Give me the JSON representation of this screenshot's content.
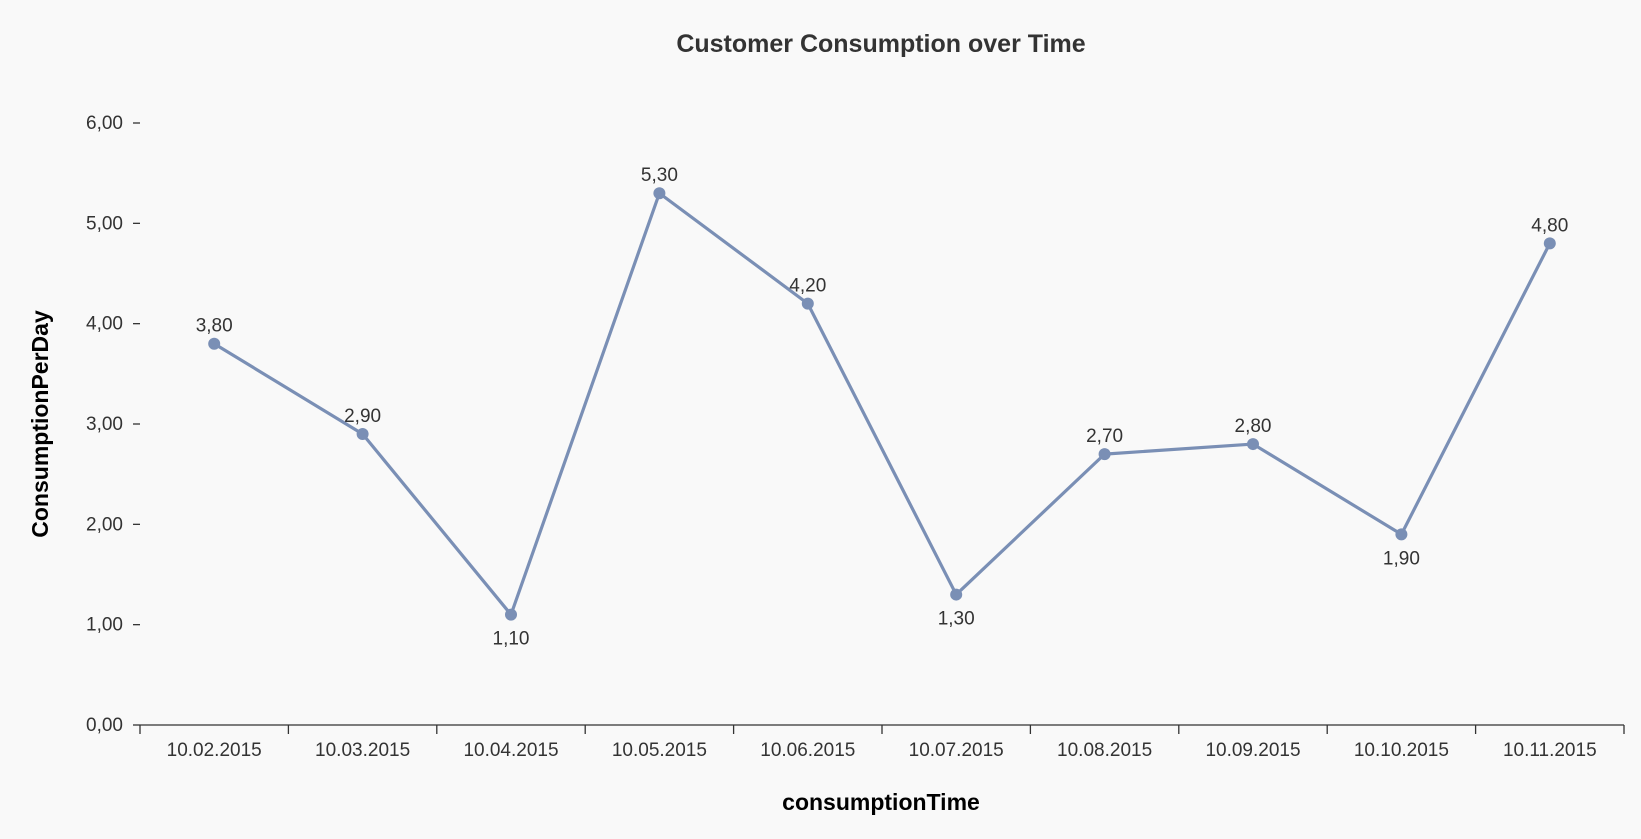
{
  "chart_data": {
    "type": "line",
    "title": "Customer Consumption over Time",
    "xlabel": "consumptionTime",
    "ylabel": "ConsumptionPerDay",
    "categories": [
      "10.02.2015",
      "10.03.2015",
      "10.04.2015",
      "10.05.2015",
      "10.06.2015",
      "10.07.2015",
      "10.08.2015",
      "10.09.2015",
      "10.10.2015",
      "10.11.2015"
    ],
    "series": [
      {
        "values": [
          3.8,
          2.9,
          1.1,
          5.3,
          4.2,
          1.3,
          2.7,
          2.8,
          1.9,
          4.8
        ]
      }
    ],
    "data_labels": [
      "3,80",
      "2,90",
      "1,10",
      "5,30",
      "4,20",
      "1,30",
      "2,70",
      "2,80",
      "1,90",
      "4,80"
    ],
    "label_positions": [
      "above",
      "above",
      "below",
      "above",
      "above",
      "below",
      "above",
      "above",
      "below",
      "above"
    ],
    "yticks": [
      "0,00",
      "1,00",
      "2,00",
      "3,00",
      "4,00",
      "5,00",
      "6,00"
    ],
    "ylim": [
      0,
      6
    ],
    "grid": false,
    "legend": "none",
    "colors": {
      "line": "#7a8fb5",
      "marker": "#7a8fb5",
      "text": "#333333",
      "background": "#f9f9f9"
    }
  }
}
